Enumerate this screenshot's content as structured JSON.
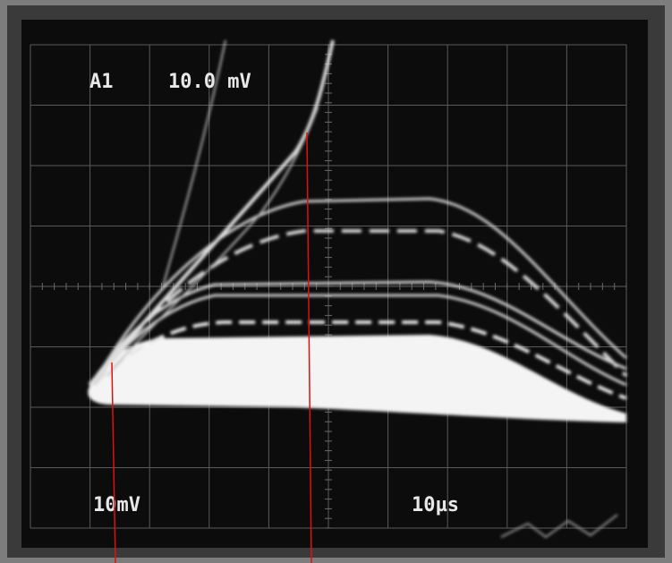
{
  "channel": "A1",
  "scale_readout": "10.0 mV",
  "vertical_setting": "10mV",
  "time_setting": "10µs"
}
